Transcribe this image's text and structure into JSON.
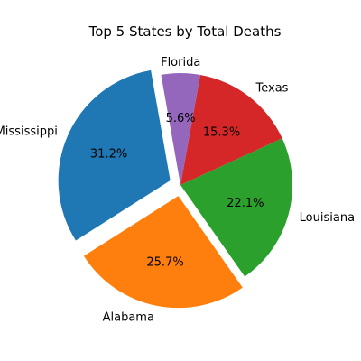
{
  "chart_data": {
    "type": "pie",
    "title": "Top 5 States by Total Deaths",
    "slices": [
      {
        "label": "Mississippi",
        "percent": 31.2,
        "pct_label": "31.2%",
        "color": "#1f77b4",
        "exploded": true
      },
      {
        "label": "Alabama",
        "percent": 25.7,
        "pct_label": "25.7%",
        "color": "#ff7f0e",
        "exploded": true
      },
      {
        "label": "Louisiana",
        "percent": 22.1,
        "pct_label": "22.1%",
        "color": "#2ca02c",
        "exploded": false
      },
      {
        "label": "Texas",
        "percent": 15.3,
        "pct_label": "15.3%",
        "color": "#d62728",
        "exploded": false
      },
      {
        "label": "Florida",
        "percent": 5.6,
        "pct_label": "5.6%",
        "color": "#9467bd",
        "exploded": false
      }
    ]
  }
}
